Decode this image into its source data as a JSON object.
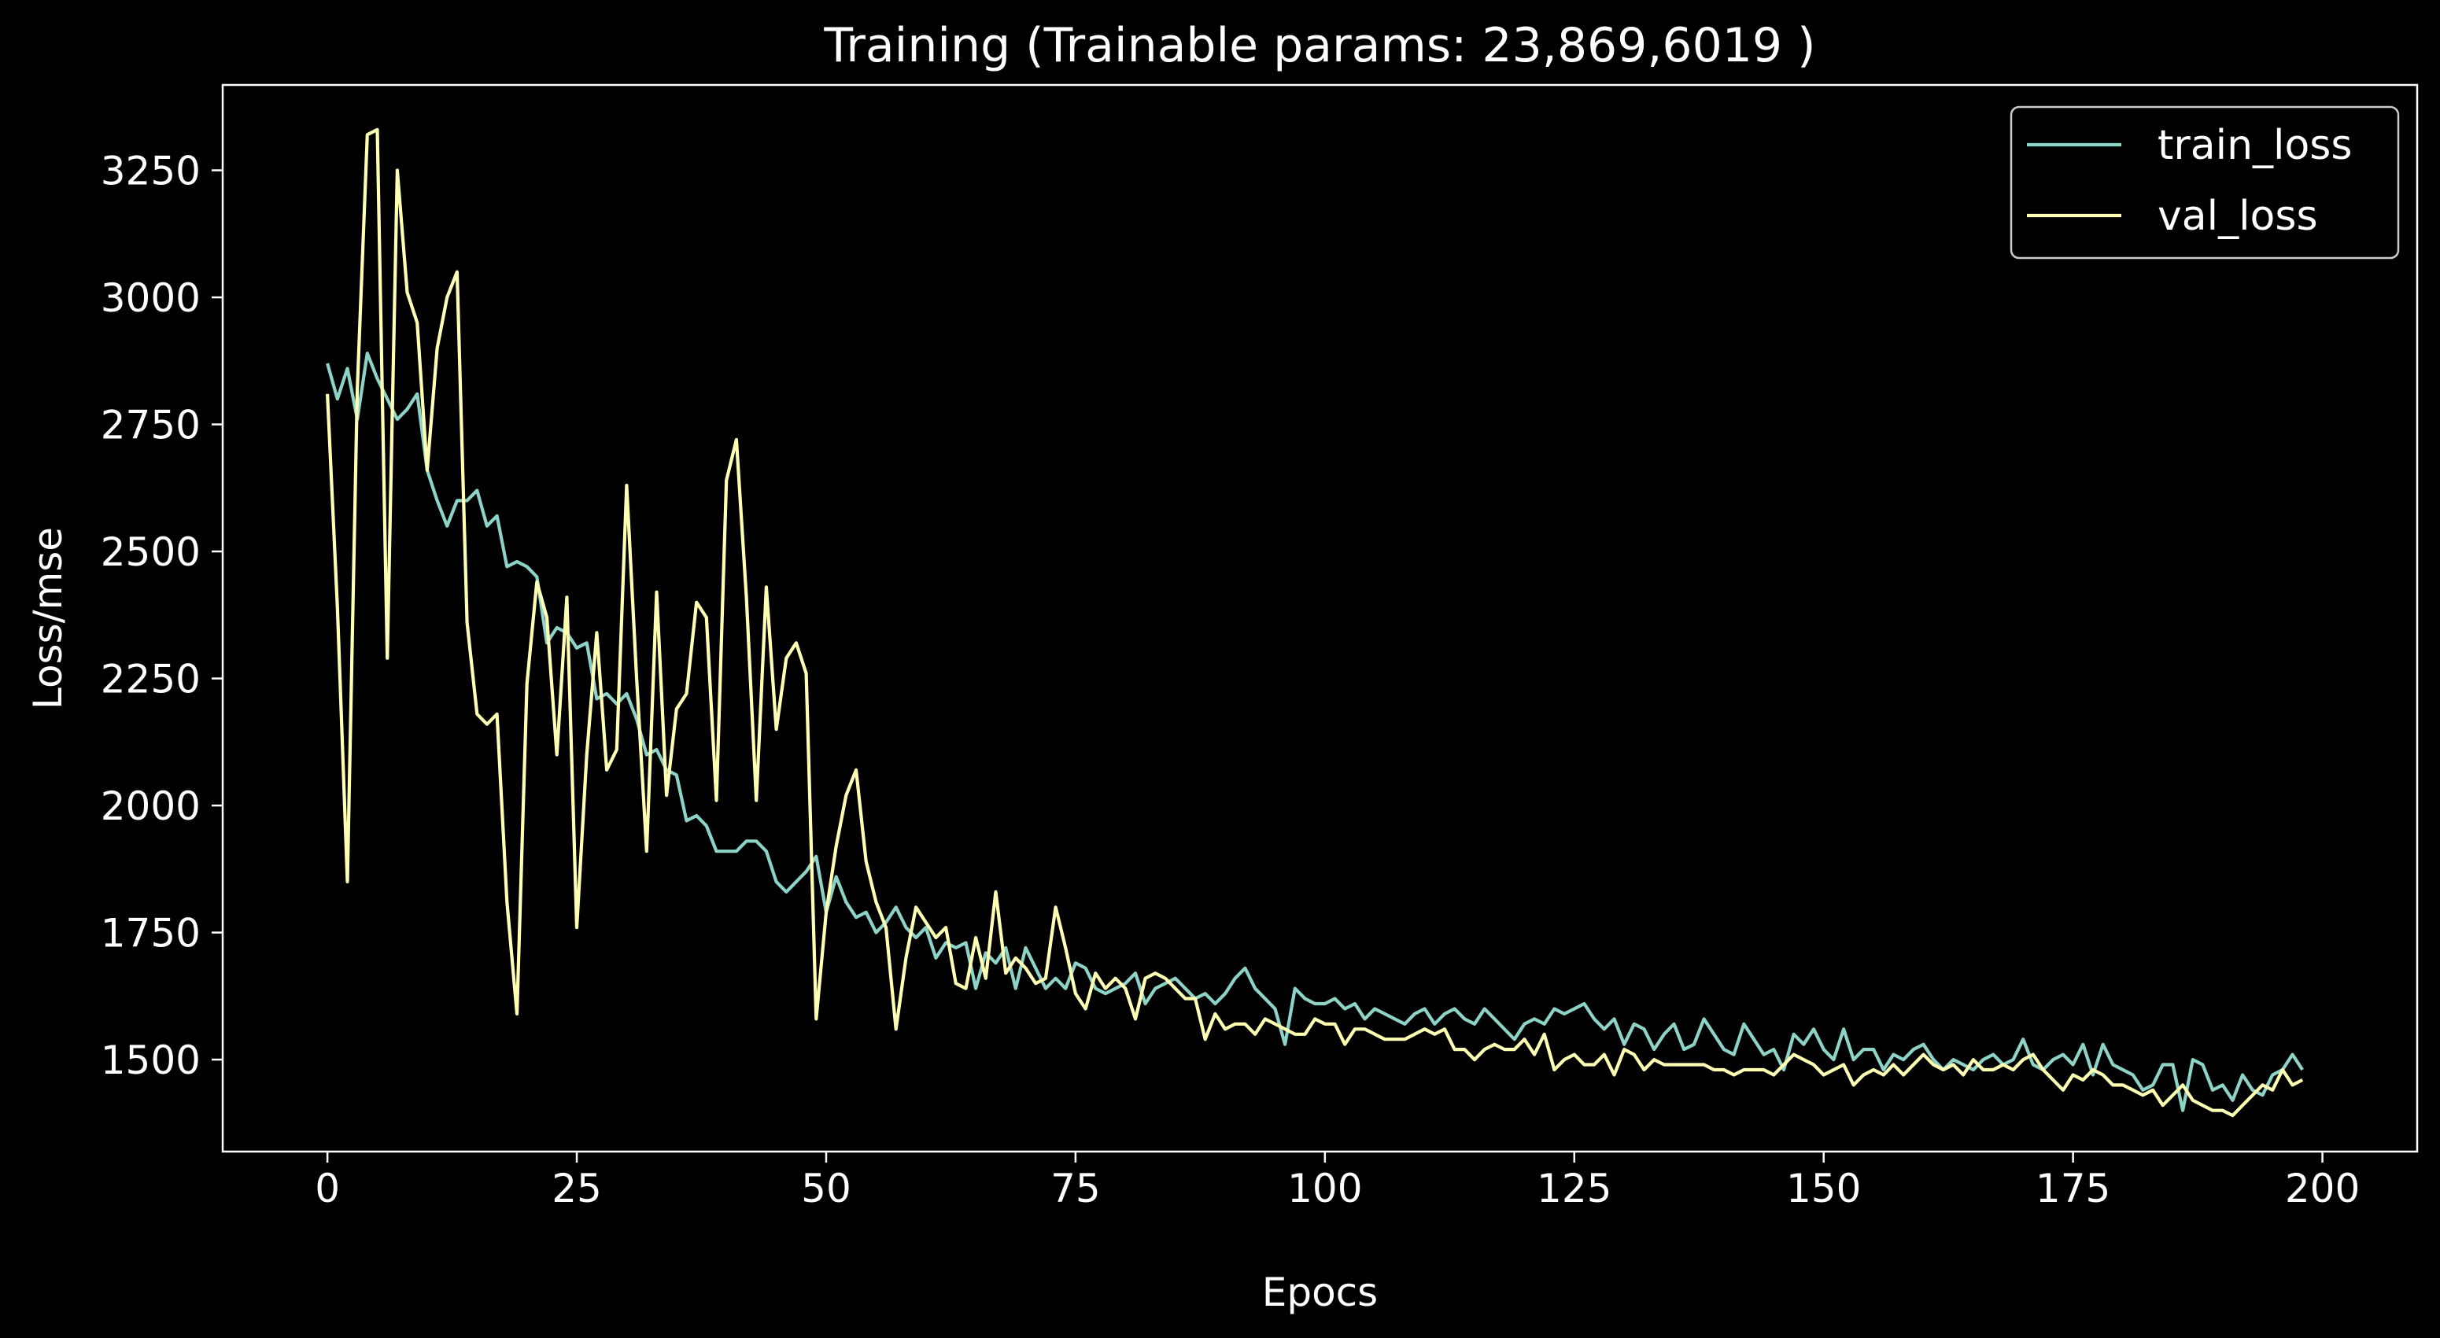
{
  "chart_data": {
    "type": "line",
    "title": "Training (Trainable params: 23,869,6019 )",
    "xlabel": "Epocs",
    "ylabel": "Loss/mse",
    "xlim": [
      -10.5,
      209.5
    ],
    "ylim": [
      1319,
      3418
    ],
    "xticks": [
      0,
      25,
      50,
      75,
      100,
      125,
      150,
      175,
      200
    ],
    "yticks": [
      1500,
      1750,
      2000,
      2250,
      2500,
      2750,
      3000,
      3250
    ],
    "grid": false,
    "legend_position": "top-right",
    "background": "#000000",
    "series": [
      {
        "name": "train_loss",
        "color": "#8dd3c7",
        "values": [
          2870,
          2800,
          2860,
          2760,
          2890,
          2840,
          2800,
          2760,
          2780,
          2810,
          2660,
          2600,
          2550,
          2600,
          2600,
          2620,
          2550,
          2570,
          2470,
          2480,
          2470,
          2450,
          2320,
          2350,
          2340,
          2310,
          2320,
          2210,
          2220,
          2200,
          2220,
          2170,
          2100,
          2110,
          2070,
          2060,
          1970,
          1980,
          1960,
          1910,
          1910,
          1910,
          1930,
          1930,
          1910,
          1850,
          1830,
          1850,
          1870,
          1900,
          1790,
          1860,
          1810,
          1780,
          1790,
          1750,
          1770,
          1800,
          1760,
          1740,
          1760,
          1700,
          1730,
          1720,
          1730,
          1640,
          1710,
          1690,
          1720,
          1640,
          1720,
          1680,
          1640,
          1660,
          1640,
          1690,
          1680,
          1640,
          1630,
          1640,
          1650,
          1670,
          1610,
          1640,
          1650,
          1660,
          1640,
          1620,
          1630,
          1610,
          1630,
          1660,
          1680,
          1640,
          1620,
          1600,
          1530,
          1640,
          1620,
          1610,
          1610,
          1620,
          1600,
          1610,
          1580,
          1600,
          1590,
          1580,
          1570,
          1590,
          1600,
          1570,
          1590,
          1600,
          1580,
          1570,
          1600,
          1580,
          1560,
          1540,
          1570,
          1580,
          1570,
          1600,
          1590,
          1600,
          1610,
          1580,
          1560,
          1580,
          1530,
          1570,
          1560,
          1520,
          1550,
          1570,
          1520,
          1530,
          1580,
          1550,
          1520,
          1510,
          1570,
          1540,
          1510,
          1520,
          1480,
          1550,
          1530,
          1560,
          1520,
          1500,
          1560,
          1500,
          1520,
          1520,
          1480,
          1510,
          1500,
          1520,
          1530,
          1500,
          1480,
          1500,
          1490,
          1480,
          1500,
          1510,
          1490,
          1500,
          1540,
          1490,
          1480,
          1500,
          1510,
          1490,
          1530,
          1470,
          1530,
          1490,
          1480,
          1470,
          1440,
          1450,
          1490,
          1490,
          1400,
          1500,
          1490,
          1440,
          1450,
          1420,
          1470,
          1440,
          1430,
          1470,
          1480,
          1510,
          1480
        ]
      },
      {
        "name": "val_loss",
        "color": "#ffffb3",
        "values": [
          2810,
          2390,
          1850,
          2820,
          3320,
          3330,
          2290,
          3250,
          3010,
          2950,
          2660,
          2900,
          3000,
          3050,
          2360,
          2180,
          2160,
          2180,
          1810,
          1590,
          2240,
          2440,
          2370,
          2100,
          2410,
          1760,
          2100,
          2340,
          2070,
          2110,
          2630,
          2250,
          1910,
          2420,
          2020,
          2190,
          2220,
          2400,
          2370,
          2010,
          2640,
          2720,
          2410,
          2010,
          2430,
          2150,
          2290,
          2320,
          2260,
          1580,
          1790,
          1920,
          2020,
          2070,
          1890,
          1810,
          1760,
          1560,
          1700,
          1800,
          1770,
          1740,
          1760,
          1650,
          1640,
          1740,
          1660,
          1830,
          1670,
          1700,
          1680,
          1650,
          1660,
          1800,
          1720,
          1630,
          1600,
          1670,
          1640,
          1660,
          1640,
          1580,
          1660,
          1670,
          1660,
          1640,
          1620,
          1620,
          1540,
          1590,
          1560,
          1570,
          1570,
          1550,
          1580,
          1570,
          1560,
          1550,
          1550,
          1580,
          1570,
          1570,
          1530,
          1560,
          1560,
          1550,
          1540,
          1540,
          1540,
          1550,
          1560,
          1550,
          1560,
          1520,
          1520,
          1500,
          1520,
          1530,
          1520,
          1520,
          1540,
          1510,
          1550,
          1480,
          1500,
          1510,
          1490,
          1490,
          1510,
          1470,
          1520,
          1510,
          1480,
          1500,
          1490,
          1490,
          1490,
          1490,
          1490,
          1480,
          1480,
          1470,
          1480,
          1480,
          1480,
          1470,
          1490,
          1510,
          1500,
          1490,
          1470,
          1480,
          1490,
          1450,
          1470,
          1480,
          1470,
          1490,
          1470,
          1490,
          1510,
          1490,
          1480,
          1490,
          1470,
          1500,
          1480,
          1480,
          1490,
          1480,
          1500,
          1510,
          1480,
          1460,
          1440,
          1470,
          1460,
          1480,
          1470,
          1450,
          1450,
          1440,
          1430,
          1440,
          1410,
          1430,
          1450,
          1420,
          1410,
          1400,
          1400,
          1390,
          1410,
          1430,
          1450,
          1440,
          1480,
          1450,
          1460
        ]
      }
    ]
  }
}
